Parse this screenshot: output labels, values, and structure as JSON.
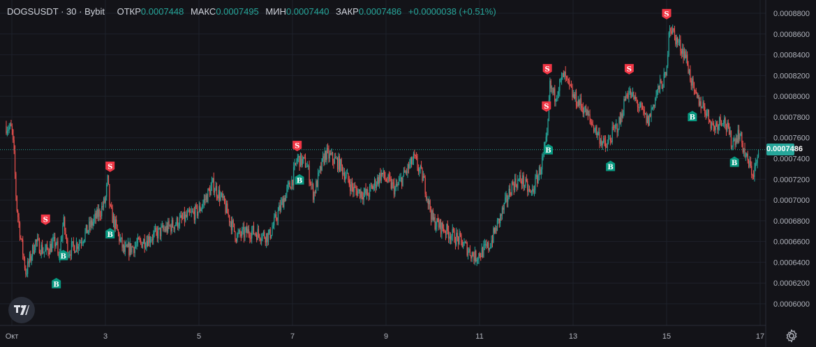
{
  "header": {
    "symbol": "DOGSUSDT",
    "sep1": "·",
    "interval": "30",
    "sep2": "·",
    "exchange": "Bybit",
    "open_label": "ОТКР",
    "open_value": "0.0007448",
    "high_label": "МАКС",
    "high_value": "0.0007495",
    "low_label": "МИН",
    "low_value": "0.0007440",
    "close_label": "ЗАКР",
    "close_value": "0.0007486",
    "change": "+0.0000038 (+0.51%)"
  },
  "price_axis": {
    "ticks": [
      "0.0008800",
      "0.0008600",
      "0.0008400",
      "0.0008200",
      "0.0008000",
      "0.0007800",
      "0.0007600",
      "0.0007400",
      "0.0007200",
      "0.0007000",
      "0.0006800",
      "0.0006600",
      "0.0006400",
      "0.0006200",
      "0.0006000"
    ],
    "current_price": "0.0007486"
  },
  "time_axis": {
    "ticks": [
      "Окт",
      "3",
      "5",
      "7",
      "9",
      "11",
      "13",
      "15",
      "17"
    ]
  },
  "colors": {
    "background": "#131318",
    "up": "#26a69a",
    "down": "#ef5350",
    "grid": "#1f222b",
    "buy_marker": "#089981",
    "sell_marker": "#f23645"
  },
  "chart_data": {
    "type": "candlestick",
    "y_range": [
      0.000594,
      0.00089
    ],
    "x_range_days": [
      "Окт",
      "17"
    ],
    "price_path": [
      [
        0.0,
        0.000776
      ],
      [
        0.3,
        0.000765
      ],
      [
        0.6,
        0.000779
      ],
      [
        1.0,
        0.000768
      ],
      [
        1.05,
        0.00074
      ],
      [
        1.1,
        0.000695
      ],
      [
        1.2,
        0.00066
      ],
      [
        1.3,
        0.00063
      ],
      [
        1.5,
        0.00066
      ],
      [
        1.7,
        0.00065
      ],
      [
        1.95,
        0.00066
      ],
      [
        2.0,
        0.00064
      ],
      [
        2.1,
        0.00068
      ],
      [
        2.2,
        0.00065
      ],
      [
        2.45,
        0.00066
      ],
      [
        2.6,
        0.00067
      ],
      [
        2.9,
        0.00069
      ],
      [
        3.0,
        0.0007
      ],
      [
        3.05,
        0.00072
      ],
      [
        3.1,
        0.00069
      ],
      [
        3.4,
        0.00065
      ],
      [
        3.8,
        0.00066
      ],
      [
        4.2,
        0.00067
      ],
      [
        4.6,
        0.00068
      ],
      [
        5.0,
        0.00069
      ],
      [
        5.3,
        0.000715
      ],
      [
        5.5,
        0.0007
      ],
      [
        5.8,
        0.000665
      ],
      [
        6.1,
        0.00067
      ],
      [
        6.5,
        0.000665
      ],
      [
        6.8,
        0.0007
      ],
      [
        7.0,
        0.00072
      ],
      [
        7.1,
        0.00074
      ],
      [
        7.3,
        0.000735
      ],
      [
        7.45,
        0.000705
      ],
      [
        7.7,
        0.000745
      ],
      [
        8.0,
        0.000735
      ],
      [
        8.3,
        0.00071
      ],
      [
        8.6,
        0.000705
      ],
      [
        8.9,
        0.000725
      ],
      [
        9.2,
        0.00071
      ],
      [
        9.4,
        0.000725
      ],
      [
        9.6,
        0.00074
      ],
      [
        9.8,
        0.00072
      ],
      [
        10.0,
        0.00068
      ],
      [
        10.3,
        0.00067
      ],
      [
        10.6,
        0.00066
      ],
      [
        10.9,
        0.000645
      ],
      [
        11.2,
        0.000655
      ],
      [
        11.5,
        0.00069
      ],
      [
        11.7,
        0.000715
      ],
      [
        11.9,
        0.00072
      ],
      [
        12.1,
        0.000705
      ],
      [
        12.3,
        0.00073
      ],
      [
        12.45,
        0.00076
      ],
      [
        12.5,
        0.00081
      ],
      [
        12.6,
        0.0008
      ],
      [
        12.8,
        0.00082
      ],
      [
        13.0,
        0.0008
      ],
      [
        13.2,
        0.00079
      ],
      [
        13.45,
        0.00077
      ],
      [
        13.7,
        0.00075
      ],
      [
        13.85,
        0.000765
      ],
      [
        14.0,
        0.000775
      ],
      [
        14.15,
        0.000805
      ],
      [
        14.35,
        0.000795
      ],
      [
        14.6,
        0.000775
      ],
      [
        14.8,
        0.000805
      ],
      [
        15.0,
        0.00082
      ],
      [
        15.05,
        0.00087
      ],
      [
        15.2,
        0.000855
      ],
      [
        15.4,
        0.00084
      ],
      [
        15.6,
        0.0008
      ],
      [
        15.8,
        0.00079
      ],
      [
        16.0,
        0.00077
      ],
      [
        16.2,
        0.00078
      ],
      [
        16.4,
        0.000755
      ],
      [
        16.55,
        0.000765
      ],
      [
        16.7,
        0.00074
      ],
      [
        16.85,
        0.000725
      ],
      [
        17.0,
        0.000748
      ]
    ],
    "signals": [
      {
        "type": "S",
        "day": 1.72,
        "price": 0.000676
      },
      {
        "type": "B",
        "day": 1.95,
        "price": 0.000625
      },
      {
        "type": "B",
        "day": 2.1,
        "price": 0.000652
      },
      {
        "type": "S",
        "day": 3.1,
        "price": 0.000727
      },
      {
        "type": "B",
        "day": 3.1,
        "price": 0.000673
      },
      {
        "type": "S",
        "day": 7.1,
        "price": 0.000747
      },
      {
        "type": "B",
        "day": 7.15,
        "price": 0.000725
      },
      {
        "type": "S",
        "day": 12.45,
        "price": 0.000821
      },
      {
        "type": "S",
        "day": 12.43,
        "price": 0.000785
      },
      {
        "type": "B",
        "day": 12.47,
        "price": 0.000754
      },
      {
        "type": "B",
        "day": 13.8,
        "price": 0.000738
      },
      {
        "type": "S",
        "day": 14.2,
        "price": 0.000821
      },
      {
        "type": "S",
        "day": 15.0,
        "price": 0.000874
      },
      {
        "type": "B",
        "day": 15.55,
        "price": 0.000786
      },
      {
        "type": "B",
        "day": 16.45,
        "price": 0.000742
      }
    ]
  }
}
